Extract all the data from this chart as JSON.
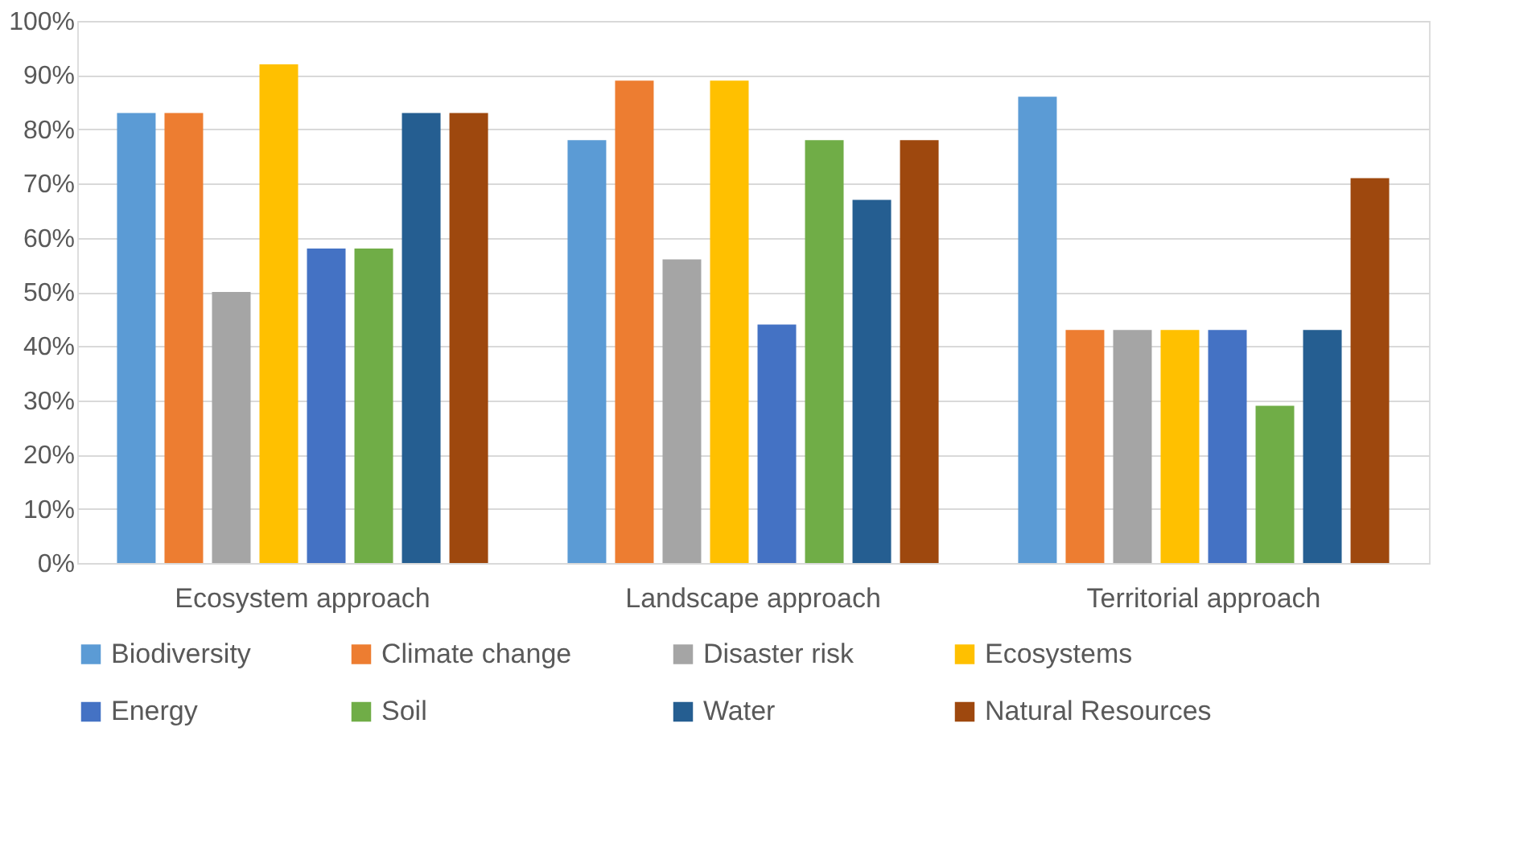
{
  "chart_data": {
    "type": "bar",
    "categories": [
      "Ecosystem approach",
      "Landscape approach",
      "Territorial approach"
    ],
    "series": [
      {
        "name": "Biodiversity",
        "color": "#5b9bd5",
        "values": [
          83,
          78,
          86
        ]
      },
      {
        "name": "Climate change",
        "color": "#ed7d31",
        "values": [
          83,
          89,
          43
        ]
      },
      {
        "name": "Disaster risk",
        "color": "#a5a5a5",
        "values": [
          50,
          56,
          43
        ]
      },
      {
        "name": "Ecosystems",
        "color": "#ffc000",
        "values": [
          92,
          89,
          43
        ]
      },
      {
        "name": "Energy",
        "color": "#4472c4",
        "values": [
          58,
          44,
          43
        ]
      },
      {
        "name": "Soil",
        "color": "#70ad47",
        "values": [
          58,
          78,
          29
        ]
      },
      {
        "name": "Water",
        "color": "#255e91",
        "values": [
          83,
          67,
          43
        ]
      },
      {
        "name": "Natural Resources",
        "color": "#9e480e",
        "values": [
          83,
          78,
          71
        ]
      }
    ],
    "ylim": [
      0,
      100
    ],
    "yticks": [
      {
        "value": 0,
        "label": "0%"
      },
      {
        "value": 10,
        "label": "10%"
      },
      {
        "value": 20,
        "label": "20%"
      },
      {
        "value": 30,
        "label": "30%"
      },
      {
        "value": 40,
        "label": "40%"
      },
      {
        "value": 50,
        "label": "50%"
      },
      {
        "value": 60,
        "label": "60%"
      },
      {
        "value": 70,
        "label": "70%"
      },
      {
        "value": 80,
        "label": "80%"
      },
      {
        "value": 90,
        "label": "90%"
      },
      {
        "value": 100,
        "label": "100%"
      }
    ],
    "grid": "y",
    "legend": "bottom"
  }
}
